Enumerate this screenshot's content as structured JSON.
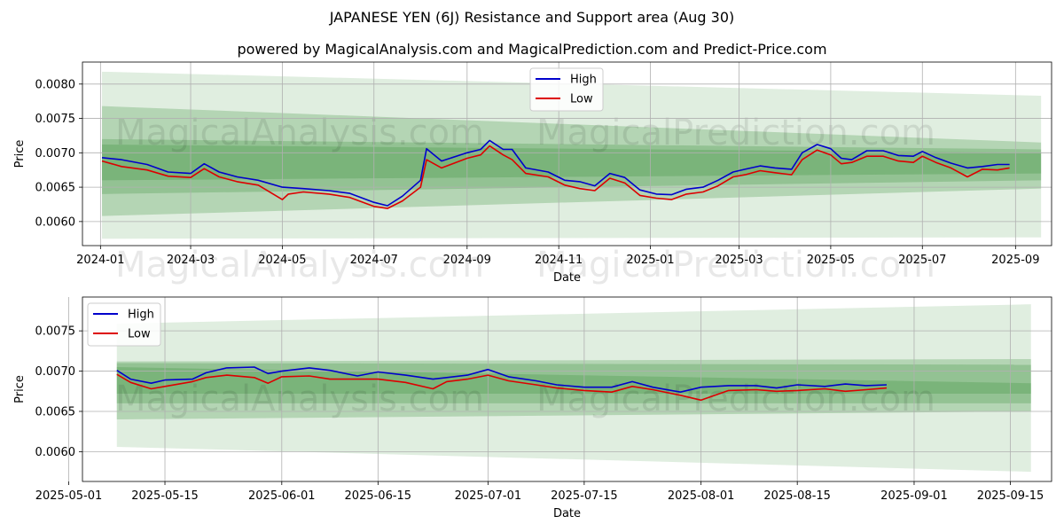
{
  "title": "JAPANESE YEN (6J) Resistance and Support area (Aug 30)",
  "subtitle": "powered by MagicalAnalysis.com and MagicalPrediction.com and Predict-Price.com",
  "watermarks": [
    "MagicalAnalysis.com",
    "MagicalPrediction.com"
  ],
  "colors": {
    "high": "#0000cc",
    "low": "#dd0000",
    "band": "#2e8b2e",
    "grid": "#b0b0b0"
  },
  "chart_data": [
    {
      "type": "line",
      "xlabel": "Date",
      "ylabel": "Price",
      "xlim": [
        "2023-12-20",
        "2025-09-25"
      ],
      "ylim": [
        0.00565,
        0.00832
      ],
      "x_ticks": [
        "2024-01",
        "2024-03",
        "2024-05",
        "2024-07",
        "2024-09",
        "2024-11",
        "2025-01",
        "2025-03",
        "2025-05",
        "2025-07",
        "2025-09"
      ],
      "y_ticks": [
        "0.0060",
        "0.0065",
        "0.0070",
        "0.0075",
        "0.0080"
      ],
      "legend": [
        "High",
        "Low"
      ],
      "legend_position": "top-center",
      "grid": true,
      "bands": {
        "x_start": "2024-01-02",
        "x_end": "2025-09-18",
        "outer_start": [
          0.00575,
          0.00818
        ],
        "outer_end": [
          0.00577,
          0.00783
        ],
        "mid_start": [
          0.00608,
          0.00768
        ],
        "mid_end": [
          0.00648,
          0.00715
        ],
        "inner_start": [
          0.0064,
          0.0072
        ],
        "inner_end": [
          0.0066,
          0.00705
        ],
        "core_start": [
          0.0066,
          0.00712
        ],
        "core_end": [
          0.0067,
          0.007
        ]
      },
      "series": [
        {
          "name": "High",
          "points": [
            [
              "2024-01-02",
              0.00693
            ],
            [
              "2024-01-15",
              0.0069
            ],
            [
              "2024-02-01",
              0.00683
            ],
            [
              "2024-02-15",
              0.00672
            ],
            [
              "2024-03-01",
              0.0067
            ],
            [
              "2024-03-10",
              0.00684
            ],
            [
              "2024-03-20",
              0.00672
            ],
            [
              "2024-04-01",
              0.00665
            ],
            [
              "2024-04-15",
              0.0066
            ],
            [
              "2024-05-01",
              0.0065
            ],
            [
              "2024-05-15",
              0.00648
            ],
            [
              "2024-06-01",
              0.00645
            ],
            [
              "2024-06-15",
              0.00641
            ],
            [
              "2024-07-01",
              0.00628
            ],
            [
              "2024-07-10",
              0.00623
            ],
            [
              "2024-07-20",
              0.00637
            ],
            [
              "2024-08-01",
              0.0066
            ],
            [
              "2024-08-05",
              0.00706
            ],
            [
              "2024-08-15",
              0.00688
            ],
            [
              "2024-09-01",
              0.007
            ],
            [
              "2024-09-10",
              0.00705
            ],
            [
              "2024-09-16",
              0.00718
            ],
            [
              "2024-09-25",
              0.00705
            ],
            [
              "2024-10-01",
              0.00705
            ],
            [
              "2024-10-10",
              0.00678
            ],
            [
              "2024-10-25",
              0.00672
            ],
            [
              "2024-11-05",
              0.0066
            ],
            [
              "2024-11-15",
              0.00658
            ],
            [
              "2024-11-25",
              0.00652
            ],
            [
              "2024-12-05",
              0.0067
            ],
            [
              "2024-12-15",
              0.00664
            ],
            [
              "2024-12-25",
              0.00646
            ],
            [
              "2025-01-05",
              0.0064
            ],
            [
              "2025-01-15",
              0.00639
            ],
            [
              "2025-01-25",
              0.00647
            ],
            [
              "2025-02-05",
              0.0065
            ],
            [
              "2025-02-15",
              0.0066
            ],
            [
              "2025-02-25",
              0.00672
            ],
            [
              "2025-03-05",
              0.00676
            ],
            [
              "2025-03-15",
              0.00681
            ],
            [
              "2025-03-25",
              0.00678
            ],
            [
              "2025-04-05",
              0.00676
            ],
            [
              "2025-04-12",
              0.007
            ],
            [
              "2025-04-22",
              0.00712
            ],
            [
              "2025-05-01",
              0.00706
            ],
            [
              "2025-05-08",
              0.00692
            ],
            [
              "2025-05-15",
              0.0069
            ],
            [
              "2025-05-25",
              0.00703
            ],
            [
              "2025-06-05",
              0.00703
            ],
            [
              "2025-06-15",
              0.00696
            ],
            [
              "2025-06-25",
              0.00695
            ],
            [
              "2025-07-01",
              0.00702
            ],
            [
              "2025-07-10",
              0.00693
            ],
            [
              "2025-07-20",
              0.00685
            ],
            [
              "2025-07-31",
              0.00678
            ],
            [
              "2025-08-10",
              0.0068
            ],
            [
              "2025-08-20",
              0.00683
            ],
            [
              "2025-08-28",
              0.00683
            ]
          ]
        },
        {
          "name": "Low",
          "points": [
            [
              "2024-01-02",
              0.00688
            ],
            [
              "2024-01-15",
              0.0068
            ],
            [
              "2024-02-01",
              0.00675
            ],
            [
              "2024-02-15",
              0.00666
            ],
            [
              "2024-03-01",
              0.00664
            ],
            [
              "2024-03-10",
              0.00677
            ],
            [
              "2024-03-20",
              0.00665
            ],
            [
              "2024-04-01",
              0.00658
            ],
            [
              "2024-04-15",
              0.00653
            ],
            [
              "2024-05-01",
              0.00632
            ],
            [
              "2024-05-05",
              0.0064
            ],
            [
              "2024-05-15",
              0.00643
            ],
            [
              "2024-06-01",
              0.0064
            ],
            [
              "2024-06-15",
              0.00635
            ],
            [
              "2024-07-01",
              0.00622
            ],
            [
              "2024-07-10",
              0.00619
            ],
            [
              "2024-07-20",
              0.0063
            ],
            [
              "2024-08-01",
              0.0065
            ],
            [
              "2024-08-05",
              0.0069
            ],
            [
              "2024-08-15",
              0.00678
            ],
            [
              "2024-09-01",
              0.00692
            ],
            [
              "2024-09-10",
              0.00697
            ],
            [
              "2024-09-16",
              0.0071
            ],
            [
              "2024-09-25",
              0.00697
            ],
            [
              "2024-10-01",
              0.0069
            ],
            [
              "2024-10-10",
              0.0067
            ],
            [
              "2024-10-25",
              0.00665
            ],
            [
              "2024-11-05",
              0.00653
            ],
            [
              "2024-11-15",
              0.00648
            ],
            [
              "2024-11-25",
              0.00645
            ],
            [
              "2024-12-05",
              0.00663
            ],
            [
              "2024-12-15",
              0.00656
            ],
            [
              "2024-12-25",
              0.00638
            ],
            [
              "2025-01-05",
              0.00634
            ],
            [
              "2025-01-15",
              0.00632
            ],
            [
              "2025-01-25",
              0.0064
            ],
            [
              "2025-02-05",
              0.00643
            ],
            [
              "2025-02-15",
              0.00652
            ],
            [
              "2025-02-25",
              0.00665
            ],
            [
              "2025-03-05",
              0.00668
            ],
            [
              "2025-03-15",
              0.00674
            ],
            [
              "2025-03-25",
              0.00671
            ],
            [
              "2025-04-05",
              0.00668
            ],
            [
              "2025-04-12",
              0.0069
            ],
            [
              "2025-04-22",
              0.00704
            ],
            [
              "2025-05-01",
              0.00697
            ],
            [
              "2025-05-08",
              0.00684
            ],
            [
              "2025-05-15",
              0.00686
            ],
            [
              "2025-05-25",
              0.00695
            ],
            [
              "2025-06-05",
              0.00695
            ],
            [
              "2025-06-15",
              0.00688
            ],
            [
              "2025-06-25",
              0.00686
            ],
            [
              "2025-07-01",
              0.00695
            ],
            [
              "2025-07-10",
              0.00686
            ],
            [
              "2025-07-20",
              0.00678
            ],
            [
              "2025-07-31",
              0.00665
            ],
            [
              "2025-08-10",
              0.00676
            ],
            [
              "2025-08-20",
              0.00675
            ],
            [
              "2025-08-28",
              0.00678
            ]
          ]
        }
      ]
    },
    {
      "type": "line",
      "xlabel": "Date",
      "ylabel": "Price",
      "xlim": [
        "2025-05-03",
        "2025-09-21"
      ],
      "ylim": [
        0.00563,
        0.00792
      ],
      "x_ticks": [
        "2025-05-01",
        "2025-05-15",
        "2025-06-01",
        "2025-06-15",
        "2025-07-01",
        "2025-07-15",
        "2025-08-01",
        "2025-08-15",
        "2025-09-01",
        "2025-09-15"
      ],
      "y_ticks": [
        "0.0060",
        "0.0065",
        "0.0070",
        "0.0075"
      ],
      "legend": [
        "High",
        "Low"
      ],
      "legend_position": "top-left",
      "grid": true,
      "bands": {
        "x_start": "2025-05-08",
        "x_end": "2025-09-18",
        "outer_start": [
          0.00606,
          0.00759
        ],
        "outer_end": [
          0.00575,
          0.00783
        ],
        "mid_start": [
          0.0064,
          0.00712
        ],
        "mid_end": [
          0.0065,
          0.00715
        ],
        "inner_start": [
          0.0066,
          0.0071
        ],
        "inner_end": [
          0.0066,
          0.00708
        ],
        "core_start": [
          0.00672,
          0.00705
        ],
        "core_end": [
          0.00672,
          0.00685
        ]
      },
      "series": [
        {
          "name": "High",
          "points": [
            [
              "2025-05-08",
              0.00701
            ],
            [
              "2025-05-10",
              0.0069
            ],
            [
              "2025-05-13",
              0.00685
            ],
            [
              "2025-05-15",
              0.00689
            ],
            [
              "2025-05-19",
              0.0069
            ],
            [
              "2025-05-21",
              0.00698
            ],
            [
              "2025-05-24",
              0.00704
            ],
            [
              "2025-05-28",
              0.00705
            ],
            [
              "2025-05-30",
              0.00697
            ],
            [
              "2025-06-01",
              0.007
            ],
            [
              "2025-06-05",
              0.00704
            ],
            [
              "2025-06-08",
              0.00701
            ],
            [
              "2025-06-12",
              0.00694
            ],
            [
              "2025-06-15",
              0.00699
            ],
            [
              "2025-06-19",
              0.00695
            ],
            [
              "2025-06-23",
              0.0069
            ],
            [
              "2025-06-25",
              0.00692
            ],
            [
              "2025-06-28",
              0.00695
            ],
            [
              "2025-07-01",
              0.00702
            ],
            [
              "2025-07-04",
              0.00693
            ],
            [
              "2025-07-08",
              0.00688
            ],
            [
              "2025-07-11",
              0.00683
            ],
            [
              "2025-07-15",
              0.0068
            ],
            [
              "2025-07-19",
              0.0068
            ],
            [
              "2025-07-22",
              0.00687
            ],
            [
              "2025-07-25",
              0.0068
            ],
            [
              "2025-07-29",
              0.00674
            ],
            [
              "2025-08-01",
              0.0068
            ],
            [
              "2025-08-05",
              0.00682
            ],
            [
              "2025-08-09",
              0.00682
            ],
            [
              "2025-08-12",
              0.00679
            ],
            [
              "2025-08-15",
              0.00683
            ],
            [
              "2025-08-19",
              0.00681
            ],
            [
              "2025-08-22",
              0.00684
            ],
            [
              "2025-08-25",
              0.00682
            ],
            [
              "2025-08-28",
              0.00683
            ]
          ]
        },
        {
          "name": "Low",
          "points": [
            [
              "2025-05-08",
              0.00696
            ],
            [
              "2025-05-10",
              0.00686
            ],
            [
              "2025-05-13",
              0.00678
            ],
            [
              "2025-05-15",
              0.00681
            ],
            [
              "2025-05-19",
              0.00687
            ],
            [
              "2025-05-21",
              0.00692
            ],
            [
              "2025-05-24",
              0.00695
            ],
            [
              "2025-05-28",
              0.00692
            ],
            [
              "2025-05-30",
              0.00685
            ],
            [
              "2025-06-01",
              0.00693
            ],
            [
              "2025-06-05",
              0.00694
            ],
            [
              "2025-06-08",
              0.0069
            ],
            [
              "2025-06-12",
              0.0069
            ],
            [
              "2025-06-15",
              0.0069
            ],
            [
              "2025-06-19",
              0.00686
            ],
            [
              "2025-06-23",
              0.00678
            ],
            [
              "2025-06-25",
              0.00687
            ],
            [
              "2025-06-28",
              0.0069
            ],
            [
              "2025-07-01",
              0.00695
            ],
            [
              "2025-07-04",
              0.00688
            ],
            [
              "2025-07-08",
              0.00683
            ],
            [
              "2025-07-11",
              0.00679
            ],
            [
              "2025-07-15",
              0.00676
            ],
            [
              "2025-07-19",
              0.00674
            ],
            [
              "2025-07-22",
              0.00681
            ],
            [
              "2025-07-25",
              0.00677
            ],
            [
              "2025-07-29",
              0.0067
            ],
            [
              "2025-08-01",
              0.00664
            ],
            [
              "2025-08-05",
              0.00676
            ],
            [
              "2025-08-09",
              0.00677
            ],
            [
              "2025-08-12",
              0.00675
            ],
            [
              "2025-08-15",
              0.00676
            ],
            [
              "2025-08-19",
              0.00678
            ],
            [
              "2025-08-22",
              0.00675
            ],
            [
              "2025-08-25",
              0.00677
            ],
            [
              "2025-08-28",
              0.00679
            ]
          ]
        }
      ]
    }
  ]
}
